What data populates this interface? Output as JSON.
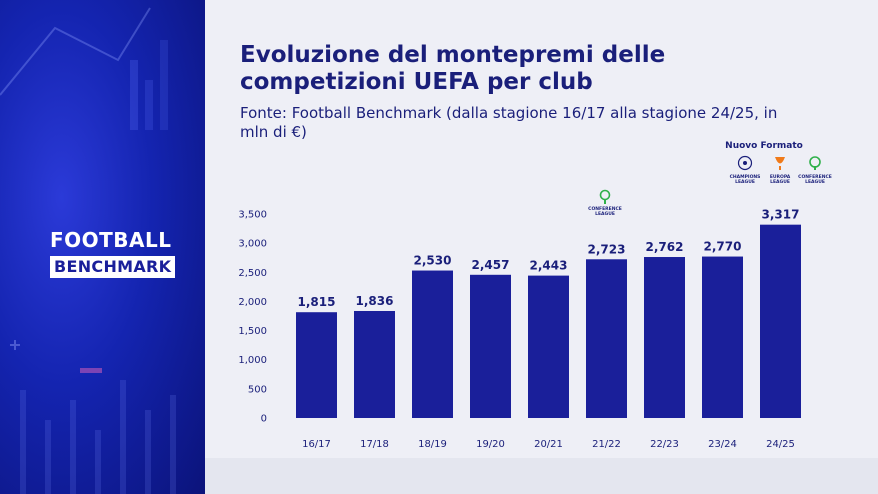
{
  "brand": {
    "line1": "FOOTBALL",
    "line2": "BENCHMARK"
  },
  "title": "Evoluzione del montepremi delle competizioni UEFA per club",
  "subtitle": "Fonte: Football Benchmark (dalla stagione 16/17 alla stagione 24/25, in mln di €)",
  "annotations": {
    "new_format": "Nuovo Formato",
    "conference_logo_2122": [
      "CONFERENCE",
      "LEAGUE"
    ],
    "logos_2425": [
      {
        "lines": [
          "CHAMPIONS",
          "LEAGUE"
        ],
        "icon": "champions-league-starball-icon"
      },
      {
        "lines": [
          "EUROPA",
          "LEAGUE"
        ],
        "icon": "europa-league-trophy-icon"
      },
      {
        "lines": [
          "CONFERENCE",
          "LEAGUE"
        ],
        "icon": "conference-league-trophy-icon"
      }
    ]
  },
  "colors": {
    "bar": "#1a1f9a",
    "text": "#1a1f7a",
    "panel": "#eeeff6",
    "brand_bg": "#1424b0"
  },
  "chart_data": {
    "type": "bar",
    "categories": [
      "16/17",
      "17/18",
      "18/19",
      "19/20",
      "20/21",
      "21/22",
      "22/23",
      "23/24",
      "24/25"
    ],
    "values": [
      1815,
      1836,
      2530,
      2457,
      2443,
      2723,
      2762,
      2770,
      3317
    ],
    "value_labels": [
      "1,815",
      "1,836",
      "2,530",
      "2,457",
      "2,443",
      "2,723",
      "2,762",
      "2,770",
      "3,317"
    ],
    "yticks": [
      "0",
      "500",
      "1,000",
      "1,500",
      "2,000",
      "2,500",
      "3,000",
      "3,500"
    ],
    "ylim": [
      0,
      3500
    ],
    "grid": false,
    "title": "Evoluzione del montepremi delle competizioni UEFA per club",
    "xlabel": "",
    "ylabel": ""
  }
}
